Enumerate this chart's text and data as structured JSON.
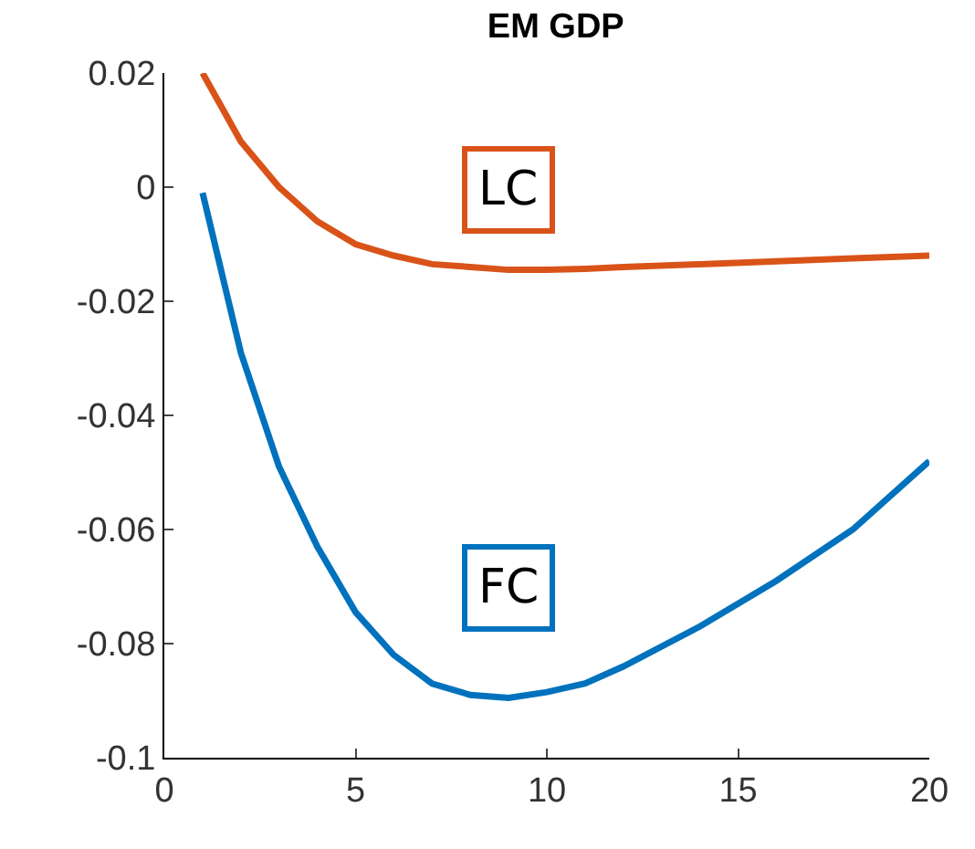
{
  "chart_data": {
    "type": "line",
    "title": "EM GDP",
    "x": [
      1,
      2,
      3,
      4,
      5,
      6,
      7,
      8,
      9,
      10,
      11,
      12,
      14,
      16,
      18,
      20
    ],
    "series": [
      {
        "name": "LC",
        "color": "#d95319",
        "values": [
          0.02,
          0.008,
          0.0,
          -0.006,
          -0.01,
          -0.012,
          -0.0135,
          -0.014,
          -0.0145,
          -0.0145,
          -0.0143,
          -0.014,
          -0.0135,
          -0.013,
          -0.0125,
          -0.012
        ]
      },
      {
        "name": "FC",
        "color": "#0072bd",
        "values": [
          -0.001,
          -0.029,
          -0.049,
          -0.063,
          -0.0745,
          -0.082,
          -0.087,
          -0.089,
          -0.0895,
          -0.0885,
          -0.087,
          -0.084,
          -0.077,
          -0.069,
          -0.06,
          -0.048
        ]
      }
    ],
    "xlim": [
      0,
      20
    ],
    "xticks": [
      0,
      5,
      10,
      15,
      20
    ],
    "ylim": [
      -0.1,
      0.02
    ],
    "yticks": [
      -0.1,
      -0.08,
      -0.06,
      -0.04,
      -0.02,
      0,
      0.02
    ],
    "legend": false,
    "marker": "none",
    "line_style": "solid"
  }
}
